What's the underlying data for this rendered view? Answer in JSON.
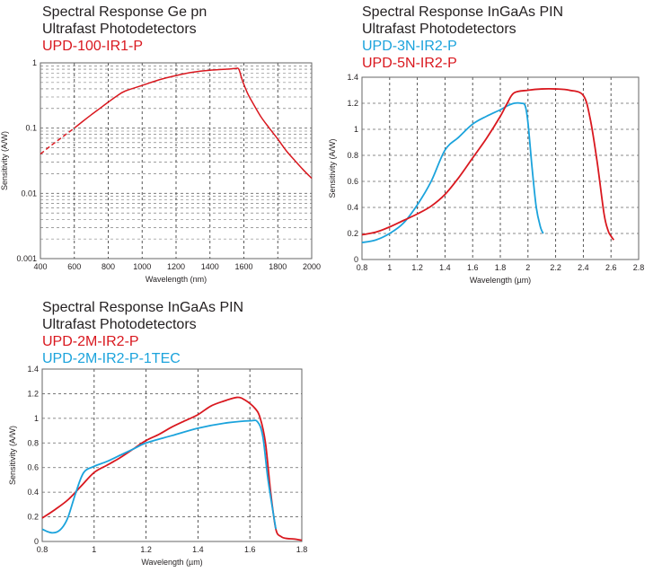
{
  "colors": {
    "red": "#d9181f",
    "blue": "#1ba3dc",
    "text": "#231f20",
    "grid": "#555555"
  },
  "chart_data": [
    {
      "id": "ge",
      "type": "line",
      "title": [
        "Spectral Response Ge pn",
        "Ultrafast Photodetectors"
      ],
      "xlabel": "Wavelength (nm)",
      "ylabel": "Sensitivity (A/W)",
      "yscale": "log",
      "xlim": [
        400,
        2000
      ],
      "ylim": [
        0.001,
        1
      ],
      "xticks": [
        400,
        600,
        800,
        1000,
        1200,
        1400,
        1600,
        1800,
        2000
      ],
      "xticklabels": [
        "400",
        "600",
        "800",
        "1000",
        "1200",
        "1400",
        "1600",
        "1800",
        "2000"
      ],
      "yticks": [
        0.001,
        0.01,
        0.1,
        1
      ],
      "yticklabels": [
        "0.001",
        "0.01",
        "0.1",
        "1"
      ],
      "grid": true,
      "series": [
        {
          "name": "UPD-100-IR1-P",
          "color": "red",
          "dashed_until": 590,
          "x": [
            400,
            450,
            500,
            550,
            600,
            650,
            700,
            750,
            800,
            850,
            900,
            1000,
            1100,
            1200,
            1300,
            1400,
            1500,
            1550,
            1570,
            1590,
            1620,
            1650,
            1700,
            1750,
            1800,
            1850,
            1900,
            1950,
            2000
          ],
          "y": [
            0.04,
            0.051,
            0.064,
            0.08,
            0.1,
            0.127,
            0.16,
            0.2,
            0.25,
            0.31,
            0.37,
            0.45,
            0.55,
            0.64,
            0.72,
            0.77,
            0.8,
            0.82,
            0.8,
            0.55,
            0.35,
            0.25,
            0.15,
            0.1,
            0.068,
            0.045,
            0.032,
            0.023,
            0.017
          ]
        }
      ]
    },
    {
      "id": "ingaas-ext",
      "type": "line",
      "title": [
        "Spectral Response InGaAs PIN",
        "Ultrafast Photodetectors"
      ],
      "xlabel": "Wavelength (µm)",
      "ylabel": "Sensitivity (A/W)",
      "yscale": "linear",
      "xlim": [
        0.8,
        2.8
      ],
      "ylim": [
        0,
        1.4
      ],
      "xticks": [
        0.8,
        1,
        1.2,
        1.4,
        1.6,
        1.8,
        2,
        2.2,
        2.4,
        2.6,
        2.8
      ],
      "xticklabels": [
        "0.8",
        "1",
        "1.2",
        "1.4",
        "1.6",
        "1.8",
        "2",
        "2.2",
        "2.4",
        "2.6",
        "2.8"
      ],
      "yticks": [
        0,
        0.2,
        0.4,
        0.6,
        0.8,
        1,
        1.2,
        1.4
      ],
      "yticklabels": [
        "0",
        "0.2",
        "0.4",
        "0.6",
        "0.8",
        "1",
        "1.2",
        "1.4"
      ],
      "grid": true,
      "series": [
        {
          "name": "UPD-3N-IR2-P",
          "color": "blue",
          "x": [
            0.8,
            0.9,
            1.0,
            1.1,
            1.2,
            1.3,
            1.4,
            1.5,
            1.6,
            1.7,
            1.8,
            1.85,
            1.9,
            1.95,
            1.98,
            2.0,
            2.03,
            2.06,
            2.09,
            2.11
          ],
          "y": [
            0.13,
            0.15,
            0.2,
            0.28,
            0.42,
            0.6,
            0.84,
            0.94,
            1.04,
            1.1,
            1.15,
            1.18,
            1.2,
            1.2,
            1.18,
            1.05,
            0.7,
            0.4,
            0.25,
            0.2
          ]
        },
        {
          "name": "UPD-5N-IR2-P",
          "color": "red",
          "x": [
            0.8,
            0.9,
            1.0,
            1.1,
            1.2,
            1.3,
            1.4,
            1.5,
            1.6,
            1.7,
            1.8,
            1.85,
            1.9,
            2.0,
            2.1,
            2.2,
            2.3,
            2.4,
            2.45,
            2.5,
            2.55,
            2.58,
            2.6,
            2.62
          ],
          "y": [
            0.19,
            0.21,
            0.25,
            0.3,
            0.35,
            0.41,
            0.5,
            0.63,
            0.78,
            0.93,
            1.1,
            1.2,
            1.28,
            1.3,
            1.31,
            1.31,
            1.3,
            1.26,
            1.08,
            0.75,
            0.35,
            0.22,
            0.18,
            0.15
          ]
        }
      ]
    },
    {
      "id": "ingaas-2m",
      "type": "line",
      "title": [
        "Spectral Response InGaAs PIN",
        "Ultrafast Photodetectors"
      ],
      "xlabel": "Wavelength (µm)",
      "ylabel": "Sensitivity (A/W)",
      "yscale": "linear",
      "xlim": [
        0.8,
        1.8
      ],
      "ylim": [
        0,
        1.4
      ],
      "xticks": [
        0.8,
        1,
        1.2,
        1.4,
        1.6,
        1.8
      ],
      "xticklabels": [
        "0.8",
        "1",
        "1.2",
        "1.4",
        "1.6",
        "1.8"
      ],
      "yticks": [
        0,
        0.2,
        0.4,
        0.6,
        0.8,
        1,
        1.2,
        1.4
      ],
      "yticklabels": [
        "0",
        "0.2",
        "0.4",
        "0.6",
        "0.8",
        "1",
        "1.2",
        "1.4"
      ],
      "grid": true,
      "series": [
        {
          "name": "UPD-2M-IR2-P",
          "color": "red",
          "x": [
            0.8,
            0.85,
            0.9,
            0.95,
            1.0,
            1.05,
            1.1,
            1.15,
            1.2,
            1.25,
            1.3,
            1.35,
            1.4,
            1.45,
            1.5,
            1.55,
            1.58,
            1.62,
            1.64,
            1.66,
            1.68,
            1.7,
            1.72,
            1.74,
            1.77,
            1.8
          ],
          "y": [
            0.19,
            0.26,
            0.34,
            0.45,
            0.56,
            0.62,
            0.68,
            0.75,
            0.82,
            0.87,
            0.93,
            0.98,
            1.03,
            1.1,
            1.14,
            1.17,
            1.15,
            1.08,
            1.0,
            0.8,
            0.4,
            0.1,
            0.04,
            0.025,
            0.02,
            0.01
          ]
        },
        {
          "name": "UPD-2M-IR2-P-1TEC",
          "color": "blue",
          "x": [
            0.8,
            0.82,
            0.84,
            0.86,
            0.88,
            0.9,
            0.93,
            0.96,
            1.0,
            1.05,
            1.1,
            1.15,
            1.2,
            1.3,
            1.4,
            1.5,
            1.6,
            1.63,
            1.65,
            1.67,
            1.7
          ],
          "y": [
            0.1,
            0.08,
            0.07,
            0.08,
            0.12,
            0.2,
            0.4,
            0.56,
            0.61,
            0.65,
            0.7,
            0.75,
            0.8,
            0.86,
            0.92,
            0.96,
            0.98,
            0.97,
            0.85,
            0.5,
            0.1
          ]
        }
      ]
    }
  ]
}
